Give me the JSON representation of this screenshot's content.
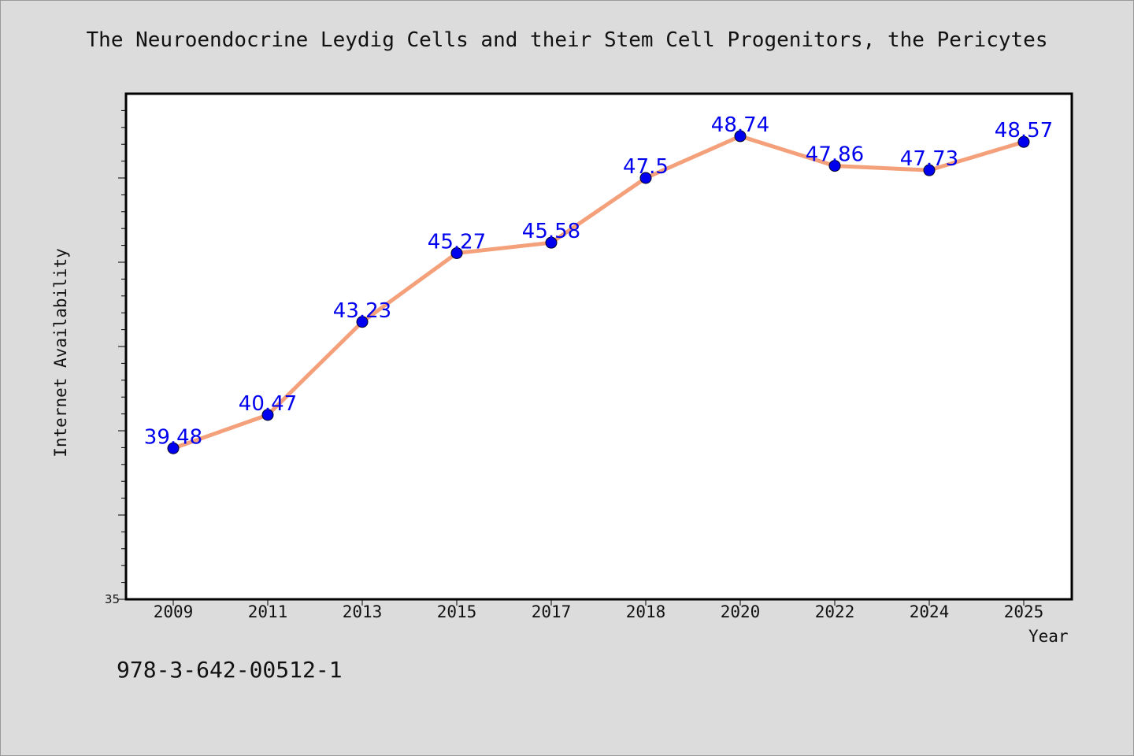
{
  "chart_data": {
    "type": "line",
    "title": "The Neuroendocrine Leydig Cells and their Stem Cell Progenitors, the Pericytes",
    "xlabel": "Year",
    "ylabel": "Internet Availability",
    "categories": [
      "2009",
      "2011",
      "2013",
      "2015",
      "2017",
      "2018",
      "2020",
      "2022",
      "2024",
      "2025"
    ],
    "series": [
      {
        "values": [
          39.48,
          40.47,
          43.23,
          45.27,
          45.58,
          47.5,
          48.74,
          47.86,
          47.73,
          48.57
        ],
        "labels": [
          "39.48",
          "40.47",
          "43.23",
          "45.27",
          "45.58",
          "47.5",
          "48.74",
          "47.86",
          "47.73",
          "48.57"
        ],
        "line_color": "#f4a07a",
        "marker_color": "#0000ee"
      }
    ],
    "ylim": [
      35,
      50
    ],
    "yticks": [
      "35"
    ],
    "grid": false,
    "legend": "none"
  },
  "footer": {
    "isbn": "978-3-642-00512-1"
  }
}
